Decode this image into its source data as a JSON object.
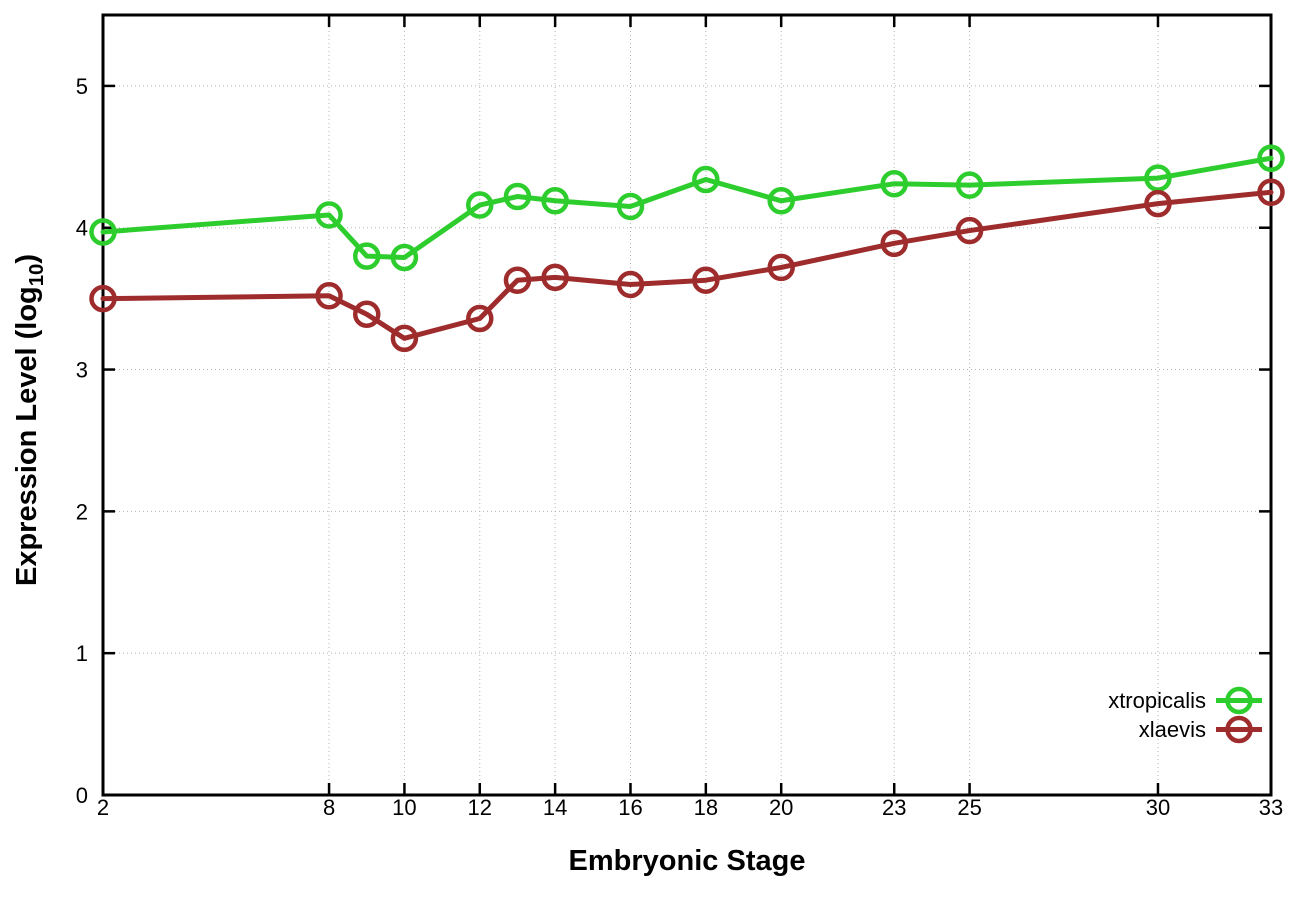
{
  "figure": {
    "background": "#ffffff"
  },
  "chart_data": {
    "type": "line",
    "title": "",
    "xlabel": "Embryonic Stage",
    "ylabel": "Expression Level (log10)",
    "ylabel_parts": {
      "prefix": "Expression Level (log",
      "subscript": "10",
      "suffix": ")"
    },
    "x": [
      2,
      8,
      9,
      10,
      12,
      13,
      14,
      16,
      18,
      20,
      23,
      25,
      30,
      33
    ],
    "x_ticks": [
      2,
      8,
      10,
      12,
      14,
      16,
      18,
      20,
      23,
      25,
      30,
      33
    ],
    "y_ticks": [
      0,
      1,
      2,
      3,
      4,
      5
    ],
    "xlim": [
      2,
      33
    ],
    "ylim": [
      0,
      5.5
    ],
    "grid": true,
    "grid_color": "#b3b3b3",
    "axis_color": "#000000",
    "legend": {
      "position": "bottom-right-inside",
      "entries": [
        "xtropicalis",
        "xlaevis"
      ]
    },
    "series": [
      {
        "name": "xtropicalis",
        "color": "#2ECD2E",
        "marker": "open-circle",
        "values": [
          3.97,
          4.09,
          3.8,
          3.79,
          4.16,
          4.22,
          4.19,
          4.15,
          4.34,
          4.19,
          4.31,
          4.3,
          4.35,
          4.49
        ]
      },
      {
        "name": "xlaevis",
        "color": "#9F2C2C",
        "marker": "open-circle",
        "values": [
          3.5,
          3.52,
          3.39,
          3.22,
          3.36,
          3.63,
          3.65,
          3.6,
          3.63,
          3.72,
          3.89,
          3.98,
          4.17,
          4.25
        ]
      }
    ]
  }
}
